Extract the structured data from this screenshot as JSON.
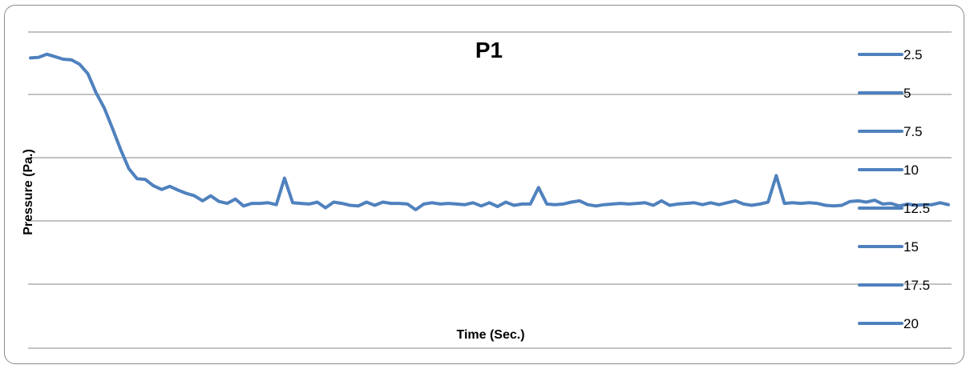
{
  "chart_data": {
    "type": "line",
    "title": "P1",
    "xlabel": "Time (Sec.)",
    "ylabel": "Pressure (Pa.)",
    "grid": true,
    "legend_position": "right",
    "line_color": "#4f81bd",
    "legend_entries": [
      "2.5",
      "5",
      "7.5",
      "10",
      "12.5",
      "15",
      "17.5",
      "20"
    ],
    "y_relative": [
      2.05,
      2.0,
      1.75,
      1.95,
      2.15,
      2.2,
      2.55,
      3.3,
      4.8,
      6.0,
      7.6,
      9.3,
      10.8,
      11.6,
      11.65,
      12.15,
      12.45,
      12.2,
      12.5,
      12.75,
      12.95,
      13.35,
      12.95,
      13.4,
      13.55,
      13.2,
      13.75,
      13.55,
      13.55,
      13.5,
      13.65,
      11.55,
      13.5,
      13.55,
      13.6,
      13.45,
      13.9,
      13.45,
      13.55,
      13.7,
      13.75,
      13.45,
      13.7,
      13.45,
      13.55,
      13.55,
      13.6,
      14.05,
      13.6,
      13.5,
      13.6,
      13.55,
      13.6,
      13.65,
      13.5,
      13.75,
      13.5,
      13.8,
      13.45,
      13.7,
      13.6,
      13.6,
      12.3,
      13.6,
      13.65,
      13.6,
      13.45,
      13.35,
      13.65,
      13.75,
      13.65,
      13.6,
      13.55,
      13.6,
      13.55,
      13.5,
      13.7,
      13.35,
      13.7,
      13.6,
      13.55,
      13.5,
      13.65,
      13.5,
      13.65,
      13.5,
      13.35,
      13.6,
      13.7,
      13.6,
      13.45,
      11.35,
      13.55,
      13.5,
      13.55,
      13.5,
      13.55,
      13.7,
      13.75,
      13.7,
      13.4,
      13.35,
      13.45,
      13.3,
      13.6,
      13.55,
      13.75,
      13.6,
      13.7,
      13.65,
      13.65,
      13.5,
      13.65
    ]
  }
}
